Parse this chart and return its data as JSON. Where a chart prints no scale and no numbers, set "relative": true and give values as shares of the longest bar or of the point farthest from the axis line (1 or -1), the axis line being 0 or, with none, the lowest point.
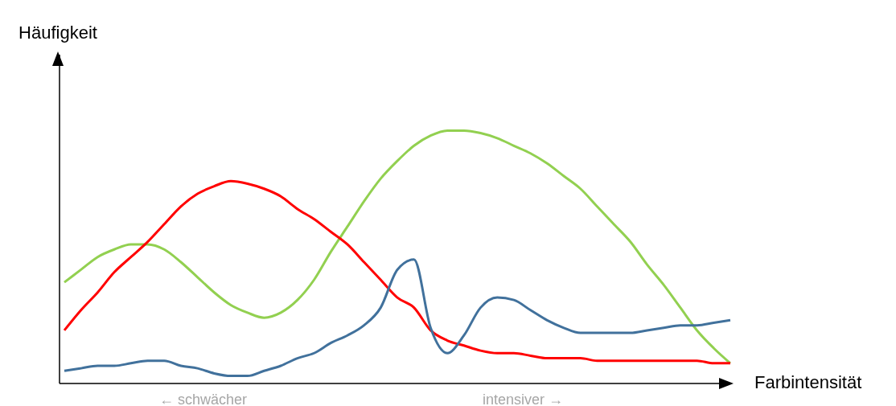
{
  "chart_data": {
    "type": "line",
    "relative": true,
    "xlabel": "Farbintensität",
    "ylabel": "Häufigkeit",
    "annotations": [
      "← schwächer",
      "intensiver →"
    ],
    "legend": false,
    "grid": false,
    "categories": [
      null,
      null,
      null,
      null,
      null,
      null,
      null,
      null,
      null,
      null,
      null,
      null,
      null,
      null,
      null,
      null,
      null,
      null,
      null,
      null,
      null,
      null,
      null,
      null,
      null,
      null,
      null,
      null,
      null,
      null,
      null,
      null,
      null,
      null,
      null,
      null,
      null,
      null,
      null,
      null,
      null
    ],
    "series": [
      {
        "color": "#92d050",
        "values": [
          0.4,
          0.45,
          0.5,
          0.53,
          0.55,
          0.55,
          0.53,
          0.48,
          0.42,
          0.36,
          0.31,
          0.28,
          0.26,
          0.28,
          0.33,
          0.41,
          0.52,
          0.62,
          0.72,
          0.81,
          0.88,
          0.94,
          0.98,
          1.0,
          1,
          0.99,
          0.97,
          0.94,
          0.91,
          0.87,
          0.82,
          0.77,
          0.7,
          0.63,
          0.56,
          0.47,
          0.39,
          0.3,
          0.21,
          0.14,
          0.08
        ]
      },
      {
        "color": "#ff0000",
        "values": [
          0.21,
          0.29,
          0.36,
          0.44,
          0.5,
          0.56,
          0.63,
          0.7,
          0.75,
          0.78,
          0.8,
          0.79,
          0.77,
          0.74,
          0.69,
          0.65,
          0.6,
          0.55,
          0.48,
          0.41,
          0.34,
          0.3,
          0.21,
          0.17,
          0.15,
          0.13,
          0.12,
          0.12,
          0.11,
          0.1,
          0.1,
          0.1,
          0.09,
          0.09,
          0.09,
          0.09,
          0.09,
          0.09,
          0.09,
          0.08,
          0.08
        ]
      },
      {
        "color": "#41719c",
        "values": [
          0.05,
          0.06,
          0.07,
          0.07,
          0.08,
          0.09,
          0.09,
          0.07,
          0.06,
          0.04,
          0.03,
          0.03,
          0.05,
          0.07,
          0.1,
          0.12,
          0.16,
          0.19,
          0.23,
          0.3,
          0.45,
          0.49,
          0.22,
          0.12,
          0.19,
          0.3,
          0.34,
          0.33,
          0.29,
          0.25,
          0.22,
          0.2,
          0.2,
          0.2,
          0.2,
          0.21,
          0.22,
          0.23,
          0.23,
          0.24,
          0.25
        ]
      }
    ]
  }
}
